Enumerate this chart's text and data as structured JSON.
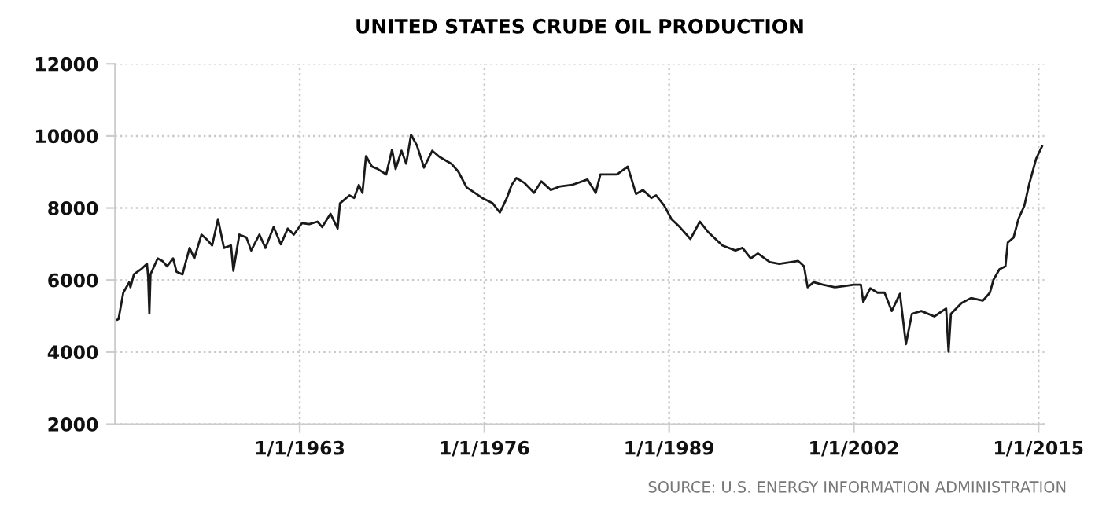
{
  "chart_data": {
    "type": "line",
    "title": "UNITED STATES CRUDE OIL PRODUCTION",
    "annotations": [
      "SOURCE: U.S. ENERGY INFORMATION ADMINISTRATION"
    ],
    "x": [
      "1950-03",
      "1950-04",
      "1950-08",
      "1951-01",
      "1951-02",
      "1951-05",
      "1951-11",
      "1952-04",
      "1952-05",
      "1952-06",
      "1952-07",
      "1953-01",
      "1953-05",
      "1953-09",
      "1954-02",
      "1954-05",
      "1954-10",
      "1955-04",
      "1955-08",
      "1956-02",
      "1956-07",
      "1956-11",
      "1957-04",
      "1957-09",
      "1958-03",
      "1958-05",
      "1958-10",
      "1959-04",
      "1959-08",
      "1960-03",
      "1960-08",
      "1961-03",
      "1961-09",
      "1962-03",
      "1962-08",
      "1963-03",
      "1963-09",
      "1964-04",
      "1964-08",
      "1965-03",
      "1965-09",
      "1965-11",
      "1966-07",
      "1966-11",
      "1967-03",
      "1967-06",
      "1967-09",
      "1968-02",
      "1968-07",
      "1969-02",
      "1969-07",
      "1969-10",
      "1970-03",
      "1970-07",
      "1970-11",
      "1971-04",
      "1971-10",
      "1972-05",
      "1972-11",
      "1973-09",
      "1974-03",
      "1974-10",
      "1975-05",
      "1975-11",
      "1976-08",
      "1977-02",
      "1977-08",
      "1977-12",
      "1978-04",
      "1978-11",
      "1979-07",
      "1980-01",
      "1980-09",
      "1981-05",
      "1982-03",
      "1983-04",
      "1983-11",
      "1984-03",
      "1984-10",
      "1985-05",
      "1986-02",
      "1986-09",
      "1987-03",
      "1987-10",
      "1988-02",
      "1988-09",
      "1989-03",
      "1989-10",
      "1990-07",
      "1991-03",
      "1991-10",
      "1992-10",
      "1993-09",
      "1994-03",
      "1994-10",
      "1995-04",
      "1996-02",
      "1996-10",
      "1997-08",
      "1998-02",
      "1998-07",
      "1998-10",
      "1999-03",
      "1999-11",
      "2000-09",
      "2001-05",
      "2002-01",
      "2002-07",
      "2002-09",
      "2003-03",
      "2003-09",
      "2004-03",
      "2004-09",
      "2005-04",
      "2005-09",
      "2006-02",
      "2006-10",
      "2007-09",
      "2008-07",
      "2008-09",
      "2008-11",
      "2009-08",
      "2010-04",
      "2011-02",
      "2011-08",
      "2011-11",
      "2012-04",
      "2012-09",
      "2012-11",
      "2013-04",
      "2013-08",
      "2014-01",
      "2014-05",
      "2014-11",
      "2015-04"
    ],
    "series": [
      {
        "color": "#1a1a1a",
        "values": [
          4900,
          4920,
          5650,
          5940,
          5800,
          6160,
          6300,
          6450,
          6090,
          5070,
          6160,
          6600,
          6530,
          6380,
          6600,
          6230,
          6160,
          6890,
          6600,
          7260,
          7110,
          6960,
          7690,
          6890,
          6960,
          6260,
          7260,
          7180,
          6820,
          7260,
          6890,
          7470,
          6990,
          7430,
          7260,
          7580,
          7550,
          7620,
          7470,
          7840,
          7430,
          8130,
          8350,
          8280,
          8640,
          8420,
          9440,
          9150,
          9080,
          8930,
          9620,
          9080,
          9590,
          9230,
          10030,
          9740,
          9120,
          9590,
          9420,
          9230,
          9010,
          8570,
          8420,
          8280,
          8130,
          7870,
          8280,
          8640,
          8830,
          8690,
          8420,
          8740,
          8500,
          8600,
          8640,
          8790,
          8420,
          8930,
          8930,
          8930,
          9150,
          8390,
          8500,
          8280,
          8350,
          8060,
          7690,
          7470,
          7140,
          7620,
          7330,
          6960,
          6820,
          6890,
          6600,
          6740,
          6500,
          6450,
          6500,
          6530,
          6380,
          5800,
          5940,
          5870,
          5800,
          5830,
          5870,
          5870,
          5390,
          5770,
          5650,
          5650,
          5140,
          5620,
          4220,
          5060,
          5140,
          4990,
          5210,
          4010,
          5060,
          5360,
          5500,
          5430,
          5650,
          6010,
          6300,
          6380,
          7040,
          7180,
          7690,
          8060,
          8640,
          9370,
          9710
        ]
      }
    ],
    "xlim": [
      "1950-01",
      "2015-06"
    ],
    "xticks": [
      {
        "value": "1963-01-01",
        "label": "1/1/1963"
      },
      {
        "value": "1976-01-01",
        "label": "1/1/1976"
      },
      {
        "value": "1989-01-01",
        "label": "1/1/1989"
      },
      {
        "value": "2002-01-01",
        "label": "1/1/2002"
      },
      {
        "value": "2015-01-01",
        "label": "1/1/2015"
      }
    ],
    "ylim": [
      2000,
      12000
    ],
    "yticks": [
      2000,
      4000,
      6000,
      8000,
      10000,
      12000
    ],
    "grid": true,
    "legend": false,
    "marker": "none",
    "line_style": "solid"
  }
}
